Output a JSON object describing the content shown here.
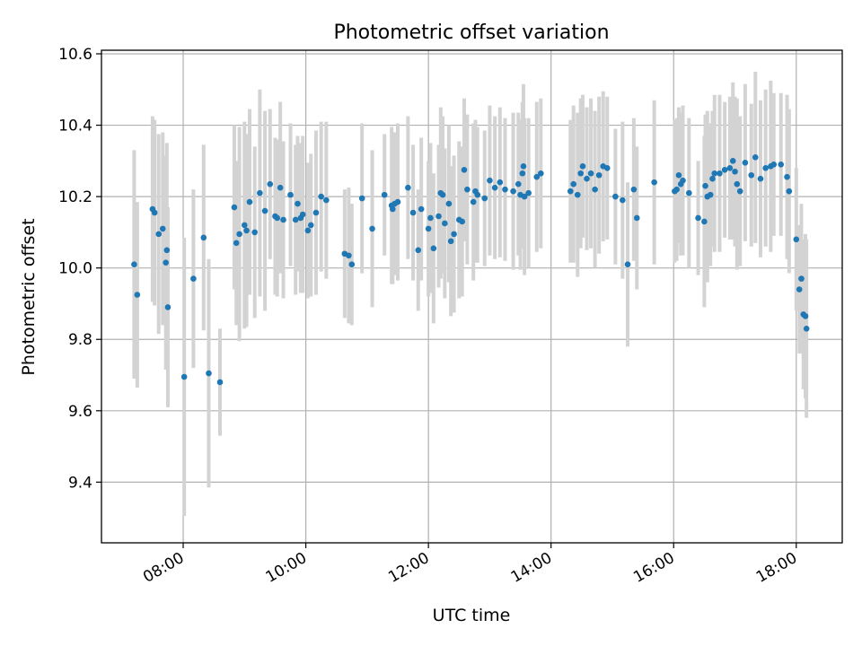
{
  "chart_data": {
    "type": "scatter",
    "title": "Photometric offset variation",
    "xlabel": "UTC time",
    "ylabel": "Photometric offset",
    "x_axis_kind": "time",
    "xlim": [
      "06:40",
      "18:45"
    ],
    "ylim": [
      9.23,
      10.61
    ],
    "x_ticks": [
      "08:00",
      "10:00",
      "12:00",
      "14:00",
      "16:00",
      "18:00"
    ],
    "y_ticks": [
      "9.4",
      "9.6",
      "9.8",
      "10.0",
      "10.2",
      "10.4",
      "10.6"
    ],
    "grid": true,
    "legend": "none",
    "colors": {
      "marker": "#1f77b4",
      "errorbar": "#d3d3d3",
      "grid": "#b0b0b0"
    },
    "series": [
      {
        "x": [
          "07:12",
          "07:15",
          "07:30",
          "07:32",
          "07:36",
          "07:40",
          "07:43",
          "07:44",
          "07:45",
          "08:01",
          "08:10",
          "08:20",
          "08:25",
          "08:36",
          "08:50",
          "08:52",
          "08:55",
          "09:00",
          "09:02",
          "09:05",
          "09:10",
          "09:15",
          "09:20",
          "09:25",
          "09:30",
          "09:32",
          "09:35",
          "09:38",
          "09:45",
          "09:50",
          "09:52",
          "09:55",
          "09:57",
          "10:02",
          "10:05",
          "10:10",
          "10:15",
          "10:20",
          "10:38",
          "10:42",
          "10:45",
          "10:55",
          "11:05",
          "11:17",
          "11:24",
          "11:25",
          "11:27",
          "11:30",
          "11:40",
          "11:45",
          "11:50",
          "11:53",
          "12:00",
          "12:02",
          "12:05",
          "12:10",
          "12:12",
          "12:14",
          "12:16",
          "12:20",
          "12:22",
          "12:25",
          "12:30",
          "12:33",
          "12:35",
          "12:38",
          "12:44",
          "12:46",
          "12:48",
          "12:55",
          "13:00",
          "13:05",
          "13:10",
          "13:15",
          "13:23",
          "13:28",
          "13:30",
          "13:32",
          "13:33",
          "13:34",
          "13:38",
          "13:46",
          "13:50",
          "14:19",
          "14:22",
          "14:26",
          "14:29",
          "14:31",
          "14:35",
          "14:39",
          "14:43",
          "14:47",
          "14:51",
          "14:55",
          "15:03",
          "15:10",
          "15:15",
          "15:21",
          "15:24",
          "15:41",
          "16:01",
          "16:03",
          "16:05",
          "16:07",
          "16:09",
          "16:15",
          "16:24",
          "16:30",
          "16:31",
          "16:33",
          "16:36",
          "16:38",
          "16:40",
          "16:45",
          "16:50",
          "16:55",
          "16:58",
          "17:00",
          "17:02",
          "17:05",
          "17:10",
          "17:16",
          "17:20",
          "17:25",
          "17:30",
          "17:35",
          "17:38",
          "17:45",
          "17:51",
          "17:53",
          "18:00",
          "18:03",
          "18:05",
          "18:07",
          "18:09",
          "18:10"
        ],
        "y": [
          10.01,
          9.925,
          10.165,
          10.155,
          10.095,
          10.11,
          10.015,
          10.05,
          9.89,
          9.695,
          9.97,
          10.085,
          9.705,
          9.68,
          10.17,
          10.07,
          10.095,
          10.12,
          10.105,
          10.185,
          10.1,
          10.21,
          10.16,
          10.235,
          10.145,
          10.14,
          10.225,
          10.135,
          10.205,
          10.135,
          10.18,
          10.14,
          10.15,
          10.105,
          10.12,
          10.155,
          10.2,
          10.19,
          10.04,
          10.035,
          10.01,
          10.195,
          10.11,
          10.205,
          10.175,
          10.165,
          10.18,
          10.185,
          10.225,
          10.155,
          10.05,
          10.165,
          10.11,
          10.14,
          10.055,
          10.145,
          10.21,
          10.205,
          10.125,
          10.18,
          10.075,
          10.095,
          10.135,
          10.13,
          10.275,
          10.22,
          10.185,
          10.215,
          10.205,
          10.195,
          10.245,
          10.225,
          10.24,
          10.22,
          10.215,
          10.235,
          10.205,
          10.265,
          10.285,
          10.2,
          10.21,
          10.255,
          10.265,
          10.215,
          10.235,
          10.205,
          10.265,
          10.285,
          10.25,
          10.265,
          10.22,
          10.26,
          10.285,
          10.28,
          10.2,
          10.19,
          10.01,
          10.22,
          10.14,
          10.24,
          10.215,
          10.22,
          10.26,
          10.235,
          10.245,
          10.21,
          10.14,
          10.13,
          10.23,
          10.2,
          10.205,
          10.25,
          10.265,
          10.265,
          10.275,
          10.28,
          10.3,
          10.27,
          10.235,
          10.215,
          10.295,
          10.26,
          10.31,
          10.25,
          10.28,
          10.285,
          10.29,
          10.29,
          10.255,
          10.215,
          10.08,
          9.94,
          9.97,
          9.87,
          9.865,
          9.83
        ],
        "yerr": [
          0.32,
          0.26,
          0.26,
          0.26,
          0.28,
          0.27,
          0.3,
          0.3,
          0.28,
          0.39,
          0.25,
          0.26,
          0.32,
          0.15,
          0.23,
          0.23,
          0.3,
          0.29,
          0.27,
          0.26,
          0.24,
          0.29,
          0.28,
          0.21,
          0.22,
          0.22,
          0.24,
          0.22,
          0.2,
          0.21,
          0.19,
          0.21,
          0.22,
          0.19,
          0.2,
          0.23,
          0.21,
          0.22,
          0.18,
          0.19,
          0.17,
          0.21,
          0.22,
          0.17,
          0.22,
          0.21,
          0.2,
          0.22,
          0.2,
          0.19,
          0.17,
          0.2,
          0.19,
          0.21,
          0.21,
          0.2,
          0.24,
          0.22,
          0.21,
          0.22,
          0.21,
          0.22,
          0.22,
          0.21,
          0.2,
          0.21,
          0.22,
          0.2,
          0.19,
          0.19,
          0.21,
          0.2,
          0.21,
          0.2,
          0.22,
          0.2,
          0.21,
          0.2,
          0.23,
          0.22,
          0.21,
          0.21,
          0.21,
          0.2,
          0.22,
          0.23,
          0.21,
          0.2,
          0.2,
          0.21,
          0.22,
          0.22,
          0.21,
          0.2,
          0.19,
          0.22,
          0.23,
          0.2,
          0.2,
          0.23,
          0.2,
          0.2,
          0.19,
          0.2,
          0.21,
          0.21,
          0.16,
          0.24,
          0.2,
          0.24,
          0.2,
          0.19,
          0.22,
          0.22,
          0.19,
          0.2,
          0.22,
          0.21,
          0.24,
          0.21,
          0.22,
          0.2,
          0.24,
          0.22,
          0.22,
          0.24,
          0.2,
          0.2,
          0.23,
          0.23,
          0.2,
          0.18,
          0.21,
          0.21,
          0.23,
          0.25
        ]
      }
    ]
  }
}
